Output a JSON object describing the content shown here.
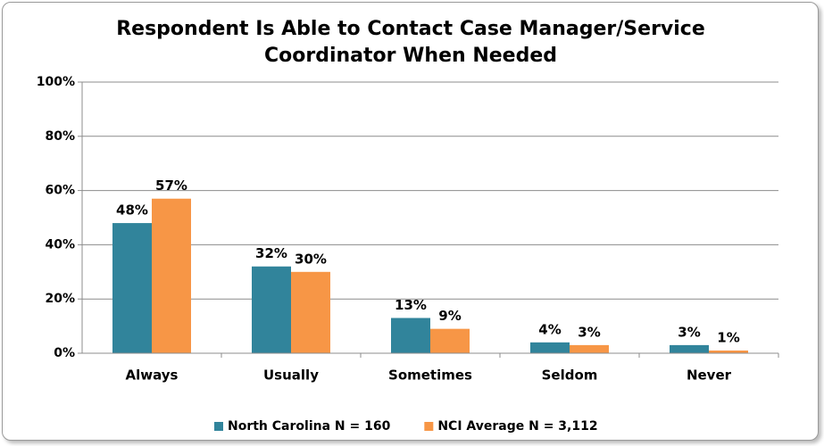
{
  "chart_data": {
    "type": "bar",
    "title": "Respondent Is Able to Contact Case Manager/Service Coordinator When Needed",
    "categories": [
      "Always",
      "Usually",
      "Sometimes",
      "Seldom",
      "Never"
    ],
    "series": [
      {
        "name": "North Carolina N = 160",
        "color": "#31849b",
        "values": [
          48,
          32,
          13,
          4,
          3
        ],
        "value_labels": [
          "48%",
          "32%",
          "13%",
          "4%",
          "3%"
        ]
      },
      {
        "name": "NCI Average N = 3,112",
        "color": "#f79646",
        "values": [
          57,
          30,
          9,
          3,
          1
        ],
        "value_labels": [
          "57%",
          "30%",
          "9%",
          "3%",
          "1%"
        ]
      }
    ],
    "ylim": [
      0,
      100
    ],
    "yticks": [
      {
        "value": 0,
        "label": "0%"
      },
      {
        "value": 20,
        "label": "20%"
      },
      {
        "value": 40,
        "label": "40%"
      },
      {
        "value": 60,
        "label": "60%"
      },
      {
        "value": 80,
        "label": "80%"
      },
      {
        "value": 100,
        "label": "100%"
      }
    ],
    "grid": true,
    "legend": "bottom"
  }
}
